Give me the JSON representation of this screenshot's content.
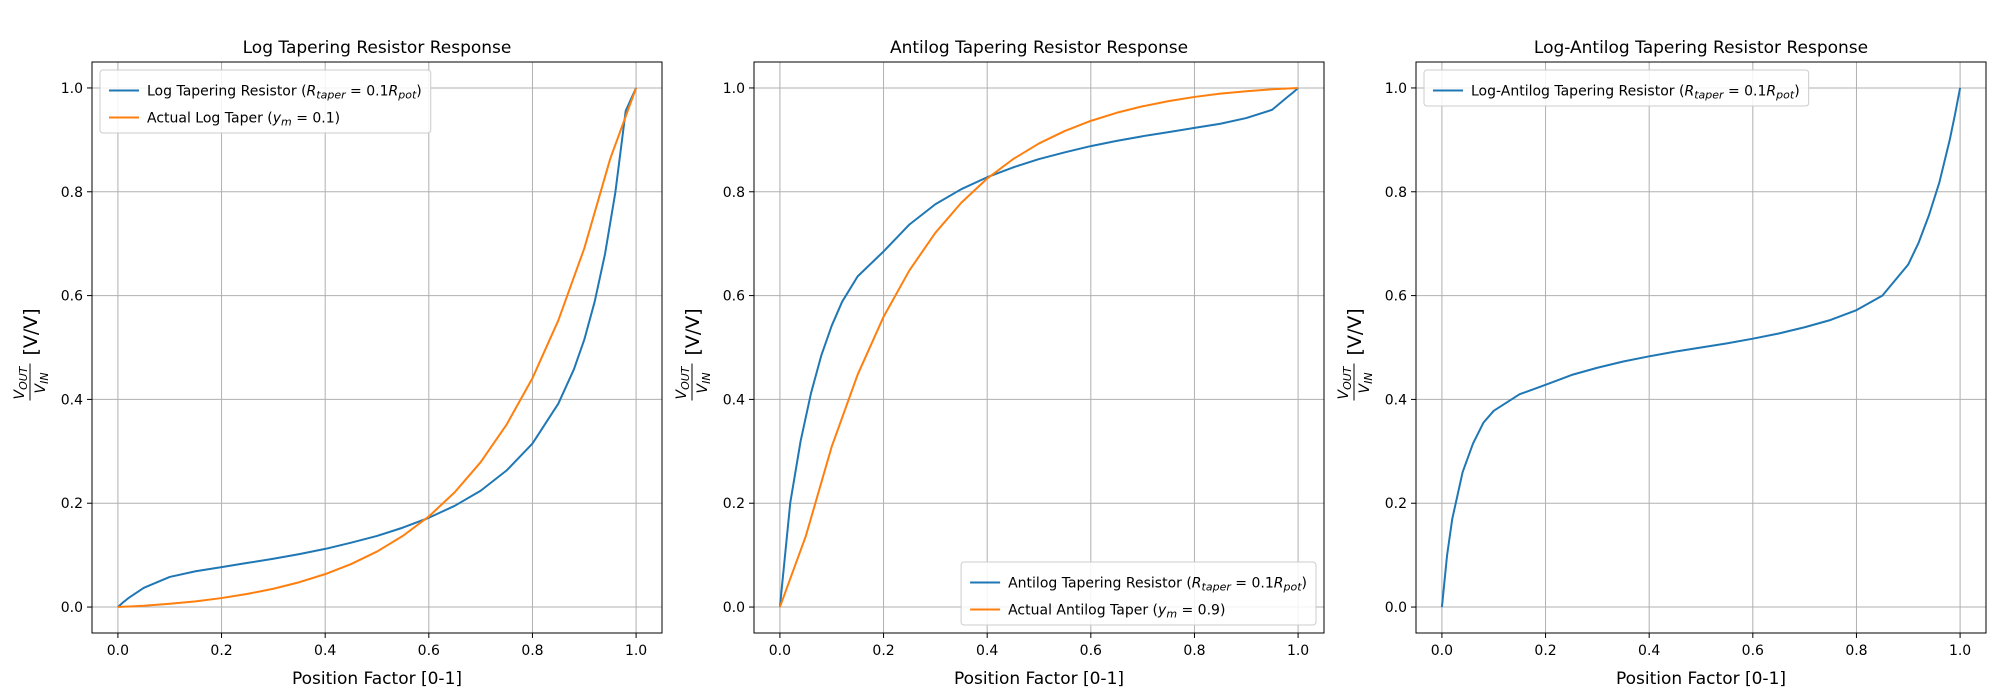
{
  "chart_data": [
    {
      "type": "line",
      "title": "Log Tapering Resistor Response",
      "xlabel": "Position Factor [0-1]",
      "ylabel": {
        "frac_num": "V",
        "frac_num_sub": "OUT",
        "frac_den": "V",
        "frac_den_sub": "IN",
        "unit": "[V/V]"
      },
      "xlim": [
        -0.05,
        1.05
      ],
      "ylim": [
        -0.05,
        1.05
      ],
      "xticks": [
        "0.0",
        "0.2",
        "0.4",
        "0.6",
        "0.8",
        "1.0"
      ],
      "yticks": [
        "0.0",
        "0.2",
        "0.4",
        "0.6",
        "0.8",
        "1.0"
      ],
      "grid": true,
      "legend_position": "top-left",
      "series": [
        {
          "name": "Log Tapering Resistor (R_taper = 0.1R_pot)",
          "legend": {
            "pre": "Log Tapering Resistor (",
            "r1": "R",
            "r1_sub": "taper",
            "mid": " = 0.1",
            "r2": "R",
            "r2_sub": "pot",
            "post": ")"
          },
          "color": "#1f77b4",
          "x": [
            0.0,
            0.01,
            0.02,
            0.05,
            0.1,
            0.15,
            0.2,
            0.25,
            0.3,
            0.35,
            0.4,
            0.45,
            0.5,
            0.55,
            0.6,
            0.65,
            0.7,
            0.75,
            0.8,
            0.85,
            0.88,
            0.9,
            0.92,
            0.94,
            0.96,
            0.98,
            1.0
          ],
          "y": [
            0.0,
            0.009,
            0.017,
            0.037,
            0.058,
            0.069,
            0.077,
            0.085,
            0.093,
            0.102,
            0.112,
            0.124,
            0.137,
            0.153,
            0.172,
            0.195,
            0.224,
            0.263,
            0.315,
            0.392,
            0.458,
            0.515,
            0.588,
            0.68,
            0.799,
            0.956,
            1.0
          ]
        },
        {
          "name": "Actual Log Taper (y_m = 0.1)",
          "legend": {
            "pre": "Actual Log Taper (",
            "r1": "y",
            "r1_sub": "m",
            "mid": " = 0.1",
            "r2": "",
            "r2_sub": "",
            "post": ")"
          },
          "color": "#ff7f0e",
          "x": [
            0.0,
            0.05,
            0.1,
            0.15,
            0.2,
            0.25,
            0.3,
            0.35,
            0.4,
            0.45,
            0.5,
            0.55,
            0.6,
            0.65,
            0.7,
            0.75,
            0.8,
            0.85,
            0.9,
            0.95,
            1.0
          ],
          "y": [
            0.0,
            0.0026,
            0.0064,
            0.011,
            0.0173,
            0.0253,
            0.0353,
            0.0478,
            0.0634,
            0.0828,
            0.1069,
            0.1371,
            0.1745,
            0.2211,
            0.2791,
            0.3513,
            0.4409,
            0.5524,
            0.6909,
            0.8633,
            1.0
          ]
        }
      ]
    },
    {
      "type": "line",
      "title": "Antilog Tapering Resistor Response",
      "xlabel": "Position Factor [0-1]",
      "ylabel": {
        "frac_num": "V",
        "frac_num_sub": "OUT",
        "frac_den": "V",
        "frac_den_sub": "IN",
        "unit": "[V/V]"
      },
      "xlim": [
        -0.05,
        1.05
      ],
      "ylim": [
        -0.05,
        1.05
      ],
      "xticks": [
        "0.0",
        "0.2",
        "0.4",
        "0.6",
        "0.8",
        "1.0"
      ],
      "yticks": [
        "0.0",
        "0.2",
        "0.4",
        "0.6",
        "0.8",
        "1.0"
      ],
      "grid": true,
      "legend_position": "bottom-right",
      "series": [
        {
          "name": "Antilog Tapering Resistor (R_taper = 0.1R_pot)",
          "legend": {
            "pre": "Antilog Tapering Resistor (",
            "r1": "R",
            "r1_sub": "taper",
            "mid": " = 0.1",
            "r2": "R",
            "r2_sub": "pot",
            "post": ")"
          },
          "color": "#1f77b4",
          "x": [
            0.0,
            0.02,
            0.04,
            0.06,
            0.08,
            0.1,
            0.12,
            0.15,
            0.2,
            0.25,
            0.3,
            0.35,
            0.4,
            0.45,
            0.5,
            0.55,
            0.6,
            0.65,
            0.7,
            0.75,
            0.8,
            0.85,
            0.9,
            0.95,
            0.98,
            0.99,
            1.0
          ],
          "y": [
            0.0,
            0.201,
            0.32,
            0.412,
            0.485,
            0.542,
            0.588,
            0.637,
            0.685,
            0.737,
            0.776,
            0.805,
            0.828,
            0.847,
            0.863,
            0.876,
            0.888,
            0.898,
            0.907,
            0.915,
            0.923,
            0.931,
            0.942,
            0.958,
            0.983,
            0.991,
            1.0
          ]
        },
        {
          "name": "Actual Antilog Taper (y_m = 0.9)",
          "legend": {
            "pre": "Actual Antilog Taper (",
            "r1": "y",
            "r1_sub": "m",
            "mid": " = 0.9",
            "r2": "",
            "r2_sub": "",
            "post": ")"
          },
          "color": "#ff7f0e",
          "x": [
            0.0,
            0.05,
            0.1,
            0.15,
            0.2,
            0.25,
            0.3,
            0.35,
            0.4,
            0.45,
            0.5,
            0.55,
            0.6,
            0.65,
            0.7,
            0.75,
            0.8,
            0.85,
            0.9,
            0.95,
            1.0
          ],
          "y": [
            0.0,
            0.1367,
            0.3091,
            0.4476,
            0.5591,
            0.6487,
            0.7209,
            0.7789,
            0.8255,
            0.8629,
            0.8931,
            0.9172,
            0.9366,
            0.9522,
            0.9647,
            0.9747,
            0.9827,
            0.989,
            0.9936,
            0.9974,
            1.0
          ]
        }
      ]
    },
    {
      "type": "line",
      "title": "Log-Antilog Tapering Resistor Response",
      "xlabel": "Position Factor [0-1]",
      "ylabel": {
        "frac_num": "V",
        "frac_num_sub": "OUT",
        "frac_den": "V",
        "frac_den_sub": "IN",
        "unit": "[V/V]"
      },
      "xlim": [
        -0.05,
        1.05
      ],
      "ylim": [
        -0.05,
        1.05
      ],
      "xticks": [
        "0.0",
        "0.2",
        "0.4",
        "0.6",
        "0.8",
        "1.0"
      ],
      "yticks": [
        "0.0",
        "0.2",
        "0.4",
        "0.6",
        "0.8",
        "1.0"
      ],
      "grid": true,
      "legend_position": "top-left",
      "series": [
        {
          "name": "Log-Antilog Tapering Resistor (R_taper = 0.1R_pot)",
          "legend": {
            "pre": "Log-Antilog Tapering Resistor (",
            "r1": "R",
            "r1_sub": "taper",
            "mid": " = 0.1",
            "r2": "R",
            "r2_sub": "pot",
            "post": ")"
          },
          "color": "#1f77b4",
          "x": [
            0.0,
            0.01,
            0.02,
            0.04,
            0.06,
            0.08,
            0.1,
            0.15,
            0.2,
            0.25,
            0.3,
            0.35,
            0.4,
            0.45,
            0.5,
            0.55,
            0.6,
            0.65,
            0.7,
            0.75,
            0.8,
            0.85,
            0.9,
            0.92,
            0.94,
            0.96,
            0.98,
            0.99,
            1.0
          ],
          "y": [
            0.0,
            0.1,
            0.17,
            0.26,
            0.315,
            0.355,
            0.378,
            0.41,
            0.428,
            0.447,
            0.461,
            0.473,
            0.483,
            0.492,
            0.5,
            0.508,
            0.517,
            0.527,
            0.539,
            0.553,
            0.572,
            0.6,
            0.66,
            0.702,
            0.755,
            0.818,
            0.9,
            0.948,
            1.0
          ]
        }
      ]
    }
  ]
}
